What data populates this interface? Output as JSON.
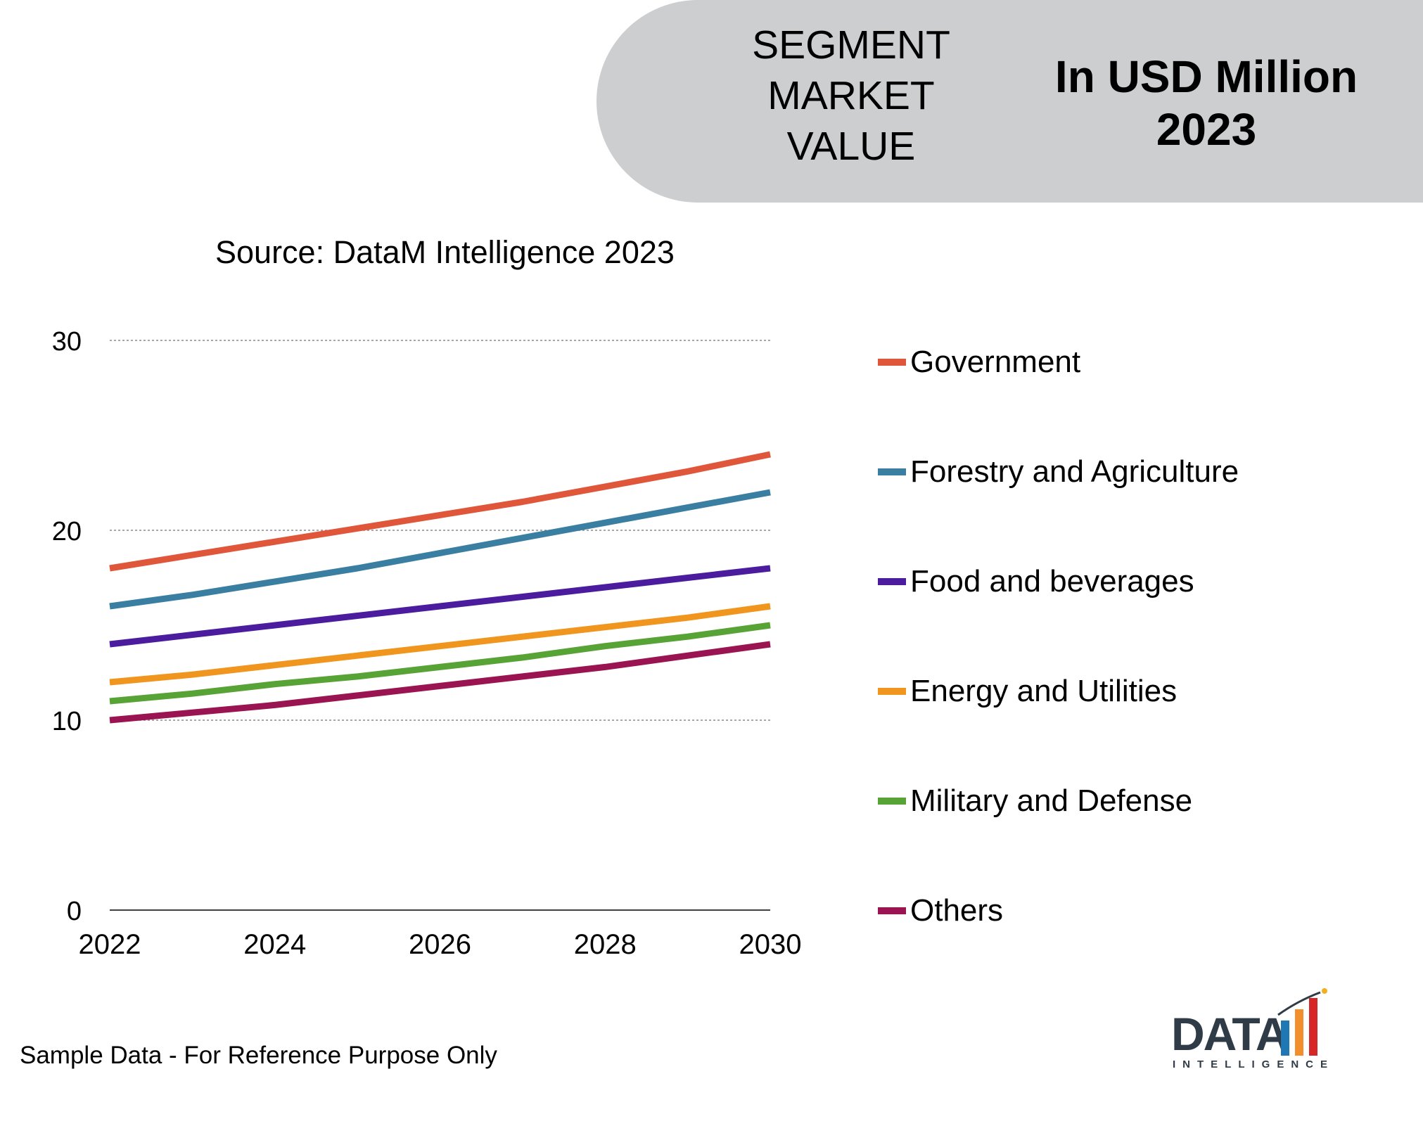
{
  "header": {
    "segment_title": "SEGMENT\nMARKET\nVALUE",
    "unit_title": "In USD Million\n2023",
    "background_color": "#ccced0"
  },
  "source": "Source: DataM Intelligence 2023",
  "footer_note": "Sample Data - For Reference Purpose Only",
  "logo": {
    "word": "DATA",
    "sub": "INTELLIGENCE",
    "bar_colors": [
      "#1f77b4",
      "#f28e2b",
      "#d62728"
    ]
  },
  "chart_data": {
    "type": "line",
    "title": "",
    "xlabel": "",
    "ylabel": "",
    "x": [
      2022,
      2023,
      2024,
      2025,
      2026,
      2027,
      2028,
      2029,
      2030
    ],
    "x_ticks": [
      2022,
      2024,
      2026,
      2028,
      2030
    ],
    "xlim": [
      2022,
      2030
    ],
    "y_ticks": [
      0,
      10,
      20,
      30
    ],
    "ylim": [
      0,
      30
    ],
    "grid": true,
    "legend_position": "right",
    "series": [
      {
        "name": "Government",
        "color": "#e0563a",
        "values": [
          18.0,
          18.7,
          19.4,
          20.1,
          20.8,
          21.5,
          22.3,
          23.1,
          24.0
        ]
      },
      {
        "name": "Forestry and Agriculture",
        "color": "#3a7ea1",
        "values": [
          16.0,
          16.6,
          17.3,
          18.0,
          18.8,
          19.6,
          20.4,
          21.2,
          22.0
        ]
      },
      {
        "name": "Food and beverages",
        "color": "#4b1c9e",
        "values": [
          14.0,
          14.5,
          15.0,
          15.5,
          16.0,
          16.5,
          17.0,
          17.5,
          18.0
        ]
      },
      {
        "name": "Energy and Utilities",
        "color": "#f0961e",
        "values": [
          12.0,
          12.4,
          12.9,
          13.4,
          13.9,
          14.4,
          14.9,
          15.4,
          16.0
        ]
      },
      {
        "name": "Military and Defense",
        "color": "#58a335",
        "values": [
          11.0,
          11.4,
          11.9,
          12.3,
          12.8,
          13.3,
          13.9,
          14.4,
          15.0
        ]
      },
      {
        "name": "Others",
        "color": "#9b1452",
        "values": [
          10.0,
          10.4,
          10.8,
          11.3,
          11.8,
          12.3,
          12.8,
          13.4,
          14.0
        ]
      }
    ]
  }
}
